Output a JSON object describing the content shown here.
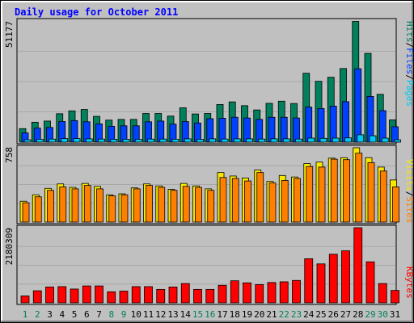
{
  "title": "Daily usage for October 2011",
  "colors": {
    "background": "#c0c0c0",
    "title": "#0000ff",
    "hits": "#00805c",
    "files": "#0040ff",
    "pages": "#00c8f0",
    "visits": "#f8e800",
    "sites": "#ff8000",
    "kbytes": "#ff0000",
    "weekend_label": "#00805c",
    "weekday_label": "#000000"
  },
  "chart_data": [
    {
      "type": "bar",
      "panel": "top",
      "scale_max_label": "51177",
      "ylim": [
        0,
        51177
      ],
      "legend": [
        "Pages",
        "/",
        "Files",
        "/",
        "Hits"
      ],
      "categories": [
        "1",
        "2",
        "3",
        "4",
        "5",
        "6",
        "7",
        "8",
        "9",
        "10",
        "11",
        "12",
        "13",
        "14",
        "15",
        "16",
        "17",
        "18",
        "19",
        "20",
        "21",
        "22",
        "23",
        "24",
        "25",
        "26",
        "27",
        "28",
        "29",
        "30",
        "31"
      ],
      "weekend_days": [
        "1",
        "2",
        "8",
        "9",
        "15",
        "16",
        "22",
        "23",
        "29",
        "30"
      ],
      "series": [
        {
          "name": "Hits",
          "values": [
            5700,
            8400,
            8900,
            12000,
            13200,
            13800,
            10900,
            9300,
            9600,
            9600,
            12100,
            12100,
            11000,
            14500,
            11900,
            12100,
            15900,
            17000,
            15400,
            13600,
            16400,
            17300,
            16300,
            29100,
            25700,
            27400,
            31100,
            51000,
            37500,
            20200,
            9400
          ]
        },
        {
          "name": "Files",
          "values": [
            3900,
            5900,
            6200,
            8700,
            9100,
            8600,
            7700,
            6700,
            6900,
            6900,
            8600,
            8900,
            7600,
            8700,
            8100,
            9900,
            10100,
            10500,
            10200,
            9600,
            10500,
            10500,
            10200,
            14800,
            14200,
            15200,
            17100,
            31000,
            19300,
            13300,
            6500
          ]
        },
        {
          "name": "Pages",
          "values": [
            1000,
            1200,
            1300,
            1500,
            1500,
            1400,
            1300,
            1200,
            1200,
            1200,
            1300,
            1300,
            1200,
            1400,
            1200,
            1400,
            1300,
            1400,
            1400,
            1300,
            1400,
            1400,
            1300,
            1700,
            1600,
            1700,
            1800,
            3100,
            2700,
            1700,
            1000
          ]
        }
      ]
    },
    {
      "type": "bar",
      "panel": "middle",
      "scale_max_label": "758",
      "ylim": [
        0,
        758
      ],
      "legend": [
        "Sites",
        "/",
        "Visits"
      ],
      "categories": [
        "1",
        "2",
        "3",
        "4",
        "5",
        "6",
        "7",
        "8",
        "9",
        "10",
        "11",
        "12",
        "13",
        "14",
        "15",
        "16",
        "17",
        "18",
        "19",
        "20",
        "21",
        "22",
        "23",
        "24",
        "25",
        "26",
        "27",
        "28",
        "29",
        "30",
        "31"
      ],
      "series": [
        {
          "name": "Visits",
          "values": [
            210,
            275,
            340,
            385,
            350,
            390,
            360,
            275,
            285,
            345,
            385,
            365,
            330,
            390,
            365,
            335,
            500,
            465,
            445,
            525,
            410,
            470,
            455,
            590,
            605,
            645,
            650,
            750,
            650,
            555,
            425
          ]
        },
        {
          "name": "Sites",
          "values": [
            195,
            255,
            320,
            355,
            335,
            370,
            335,
            265,
            275,
            335,
            370,
            350,
            320,
            360,
            350,
            320,
            450,
            440,
            415,
            500,
            395,
            420,
            440,
            560,
            555,
            635,
            630,
            695,
            600,
            515,
            355
          ]
        }
      ]
    },
    {
      "type": "bar",
      "panel": "bottom",
      "scale_max_label": "2180309",
      "ylim": [
        0,
        2180309
      ],
      "legend": [
        "KBytes"
      ],
      "categories": [
        "1",
        "2",
        "3",
        "4",
        "5",
        "6",
        "7",
        "8",
        "9",
        "10",
        "11",
        "12",
        "13",
        "14",
        "15",
        "16",
        "17",
        "18",
        "19",
        "20",
        "21",
        "22",
        "23",
        "24",
        "25",
        "26",
        "27",
        "28",
        "29",
        "30",
        "31"
      ],
      "series": [
        {
          "name": "KBytes",
          "values": [
            200000,
            350000,
            460000,
            470000,
            400000,
            490000,
            490000,
            320000,
            340000,
            470000,
            470000,
            390000,
            460000,
            560000,
            390000,
            390000,
            510000,
            640000,
            580000,
            530000,
            590000,
            610000,
            650000,
            1280000,
            1130000,
            1410000,
            1510000,
            2180000,
            1190000,
            560000,
            360000
          ]
        }
      ]
    }
  ]
}
